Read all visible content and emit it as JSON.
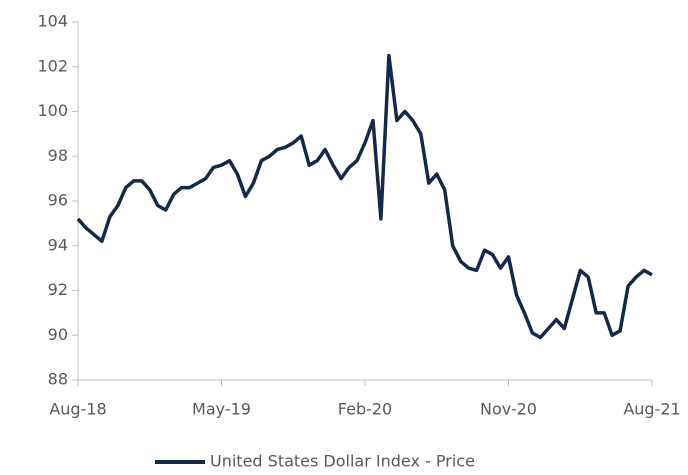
{
  "chart_data": {
    "type": "line",
    "x": [
      "Aug-18",
      null,
      null,
      null,
      null,
      null,
      null,
      null,
      null,
      null,
      null,
      null,
      null,
      null,
      null,
      null,
      null,
      null,
      "May-19",
      null,
      null,
      null,
      null,
      null,
      null,
      null,
      null,
      null,
      null,
      null,
      null,
      null,
      null,
      null,
      null,
      null,
      "Feb-20",
      null,
      null,
      null,
      null,
      null,
      null,
      null,
      null,
      null,
      null,
      null,
      null,
      null,
      null,
      null,
      null,
      null,
      "Nov-20",
      null,
      null,
      null,
      null,
      null,
      null,
      null,
      null,
      null,
      null,
      null,
      null,
      null,
      null,
      null,
      null,
      null,
      "Aug-21"
    ],
    "series": [
      {
        "name": "United States Dollar Index - Price",
        "color": "#13294b",
        "values": [
          95.2,
          94.8,
          94.5,
          94.2,
          95.3,
          95.8,
          96.6,
          96.9,
          96.9,
          96.5,
          95.8,
          95.6,
          96.3,
          96.6,
          96.6,
          96.8,
          97.0,
          97.5,
          97.6,
          97.8,
          97.2,
          96.2,
          96.8,
          97.8,
          98.0,
          98.3,
          98.4,
          98.6,
          98.9,
          97.6,
          97.8,
          98.3,
          97.6,
          97.0,
          97.5,
          97.8,
          98.6,
          99.6,
          95.2,
          102.5,
          99.6,
          100.0,
          99.6,
          99.0,
          96.8,
          97.2,
          96.5,
          94.0,
          93.3,
          93.0,
          92.9,
          93.8,
          93.6,
          93.0,
          93.5,
          91.8,
          91.0,
          90.1,
          89.9,
          90.3,
          90.7,
          90.3,
          91.6,
          92.9,
          92.6,
          91.0,
          91.0,
          90.0,
          90.2,
          92.2,
          92.6,
          92.9,
          92.7
        ]
      }
    ],
    "ylim": [
      88,
      104
    ],
    "yticks": [
      88,
      90,
      92,
      94,
      96,
      98,
      100,
      102,
      104
    ],
    "grid": false,
    "legend": "bottom"
  }
}
